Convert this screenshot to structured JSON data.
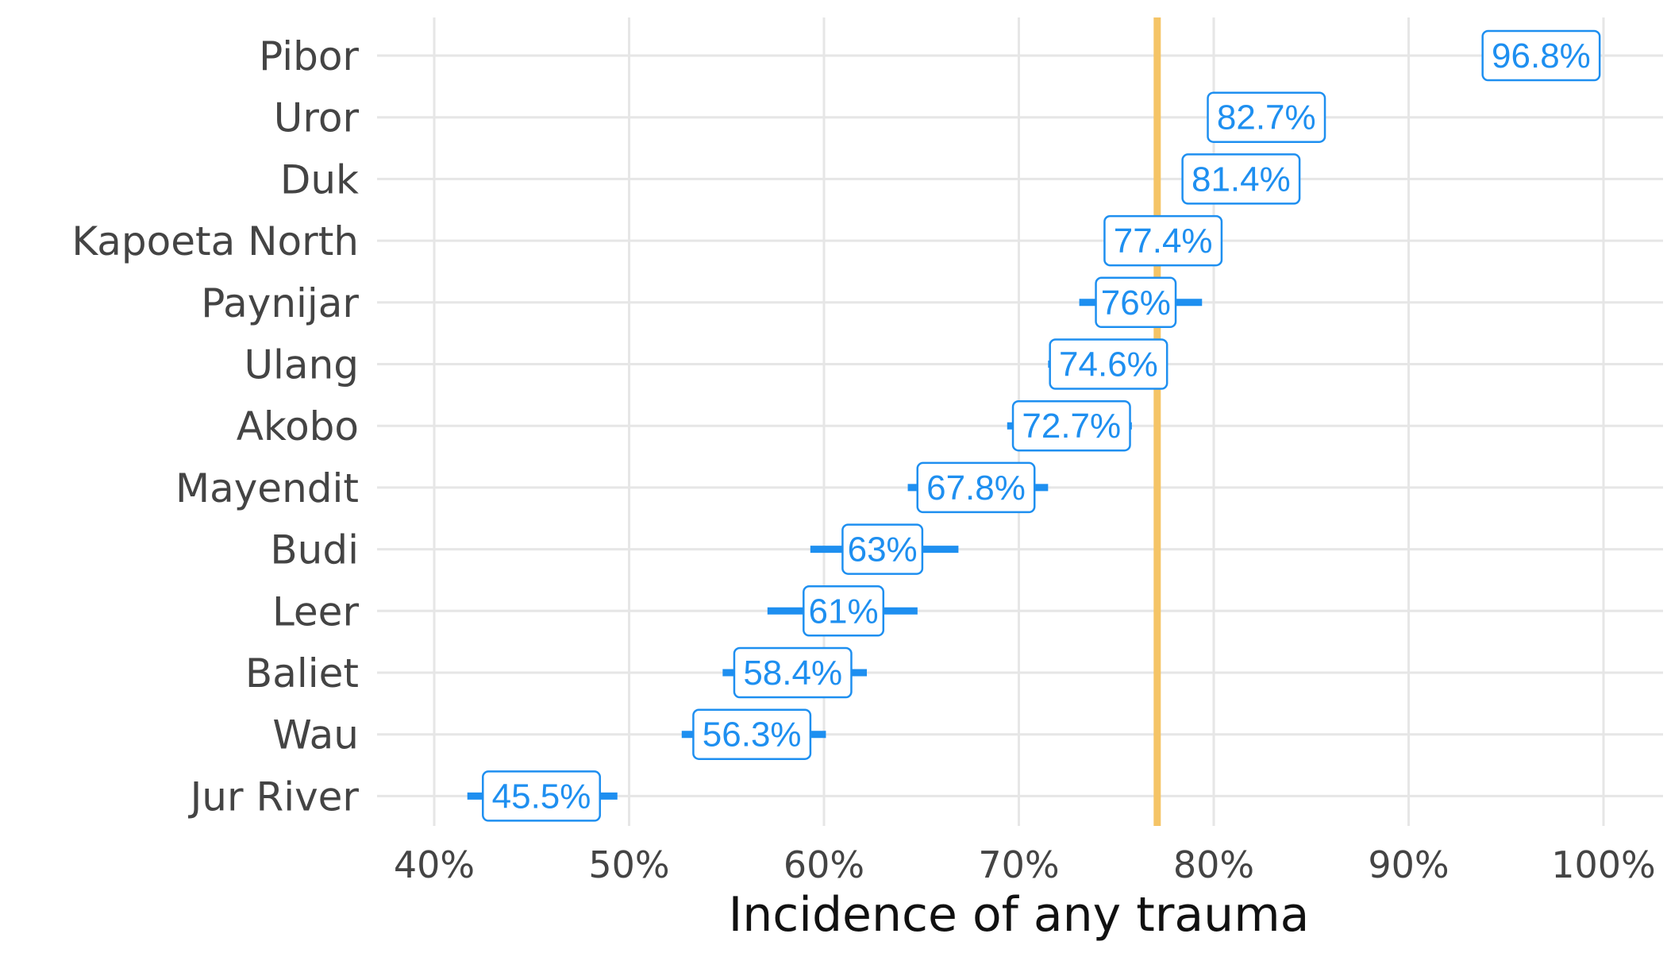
{
  "chart_data": {
    "type": "dot-range",
    "title": "",
    "xlabel": "Incidence of any trauma",
    "ylabel": "",
    "xlim": [
      37,
      103
    ],
    "x_ticks": [
      40,
      50,
      60,
      70,
      80,
      90,
      100
    ],
    "x_tick_labels": [
      "40%",
      "50%",
      "60%",
      "70%",
      "80%",
      "90%",
      "100%"
    ],
    "grid": true,
    "reference_line": {
      "value": 77.1,
      "color": "#F5C466"
    },
    "point_color": "#1E8FF0",
    "categories": [
      "Pibor",
      "Uror",
      "Duk",
      "Kapoeta North",
      "Paynijar",
      "Ulang",
      "Akobo",
      "Mayendit",
      "Budi",
      "Leer",
      "Baliet",
      "Wau",
      "Jur River"
    ],
    "values": [
      96.8,
      82.7,
      81.4,
      77.4,
      76,
      74.6,
      72.7,
      67.8,
      63,
      61,
      58.4,
      56.3,
      45.5
    ],
    "labels": [
      "96.8%",
      "82.7%",
      "81.4%",
      "77.4%",
      "76%",
      "74.6%",
      "72.7%",
      "67.8%",
      "63%",
      "61%",
      "58.4%",
      "56.3%",
      "45.5%"
    ],
    "ci_low": [
      96.2,
      81.8,
      80.5,
      76.3,
      73.1,
      71.5,
      69.4,
      64.3,
      59.3,
      57.1,
      54.8,
      52.7,
      41.7
    ],
    "ci_high": [
      97.4,
      83.6,
      82.3,
      78.5,
      79.4,
      77.6,
      75.8,
      71.5,
      66.9,
      64.8,
      62.2,
      60.1,
      49.4
    ]
  }
}
